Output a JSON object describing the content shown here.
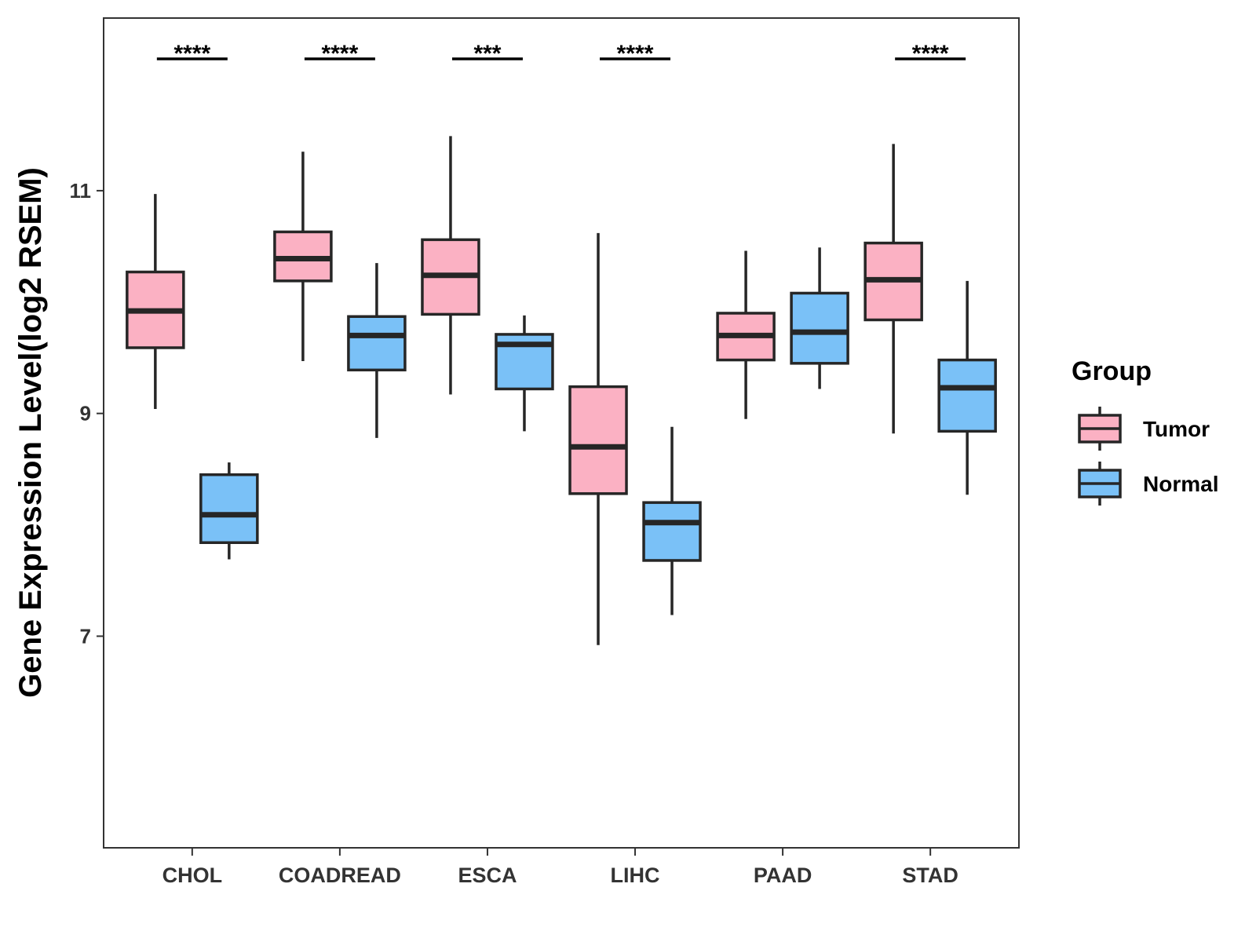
{
  "chart_data": {
    "type": "boxplot",
    "title": "",
    "xlabel": "",
    "ylabel": "Gene Expression Level(log2 RSEM)",
    "ylim": [
      5.1,
      12.55
    ],
    "yticks": [
      7,
      9,
      11
    ],
    "categories": [
      "CHOL",
      "COADREAD",
      "ESCA",
      "LIHC",
      "PAAD",
      "STAD"
    ],
    "significance": [
      "****",
      "****",
      "***",
      "****",
      "",
      "****"
    ],
    "series": [
      {
        "name": "Tumor",
        "color": "#FBB1C3",
        "boxes": [
          {
            "min": 9.04,
            "q1": 9.59,
            "median": 9.92,
            "q3": 10.27,
            "max": 10.97
          },
          {
            "min": 9.47,
            "q1": 10.19,
            "median": 10.39,
            "q3": 10.63,
            "max": 11.35
          },
          {
            "min": 9.17,
            "q1": 9.89,
            "median": 10.24,
            "q3": 10.56,
            "max": 11.49
          },
          {
            "min": 6.92,
            "q1": 8.28,
            "median": 8.7,
            "q3": 9.24,
            "max": 10.62
          },
          {
            "min": 8.95,
            "q1": 9.48,
            "median": 9.7,
            "q3": 9.9,
            "max": 10.46
          },
          {
            "min": 8.82,
            "q1": 9.84,
            "median": 10.2,
            "q3": 10.53,
            "max": 11.42
          }
        ]
      },
      {
        "name": "Normal",
        "color": "#7AC1F7",
        "boxes": [
          {
            "min": 7.69,
            "q1": 7.84,
            "median": 8.09,
            "q3": 8.45,
            "max": 8.56
          },
          {
            "min": 8.78,
            "q1": 9.39,
            "median": 9.7,
            "q3": 9.87,
            "max": 10.35
          },
          {
            "min": 8.84,
            "q1": 9.22,
            "median": 9.62,
            "q3": 9.71,
            "max": 9.88
          },
          {
            "min": 7.19,
            "q1": 7.68,
            "median": 8.02,
            "q3": 8.2,
            "max": 8.88
          },
          {
            "min": 9.22,
            "q1": 9.45,
            "median": 9.73,
            "q3": 10.08,
            "max": 10.49
          },
          {
            "min": 8.27,
            "q1": 8.84,
            "median": 9.23,
            "q3": 9.48,
            "max": 10.19
          }
        ]
      }
    ],
    "legend": {
      "title": "Group",
      "position": "right"
    }
  }
}
